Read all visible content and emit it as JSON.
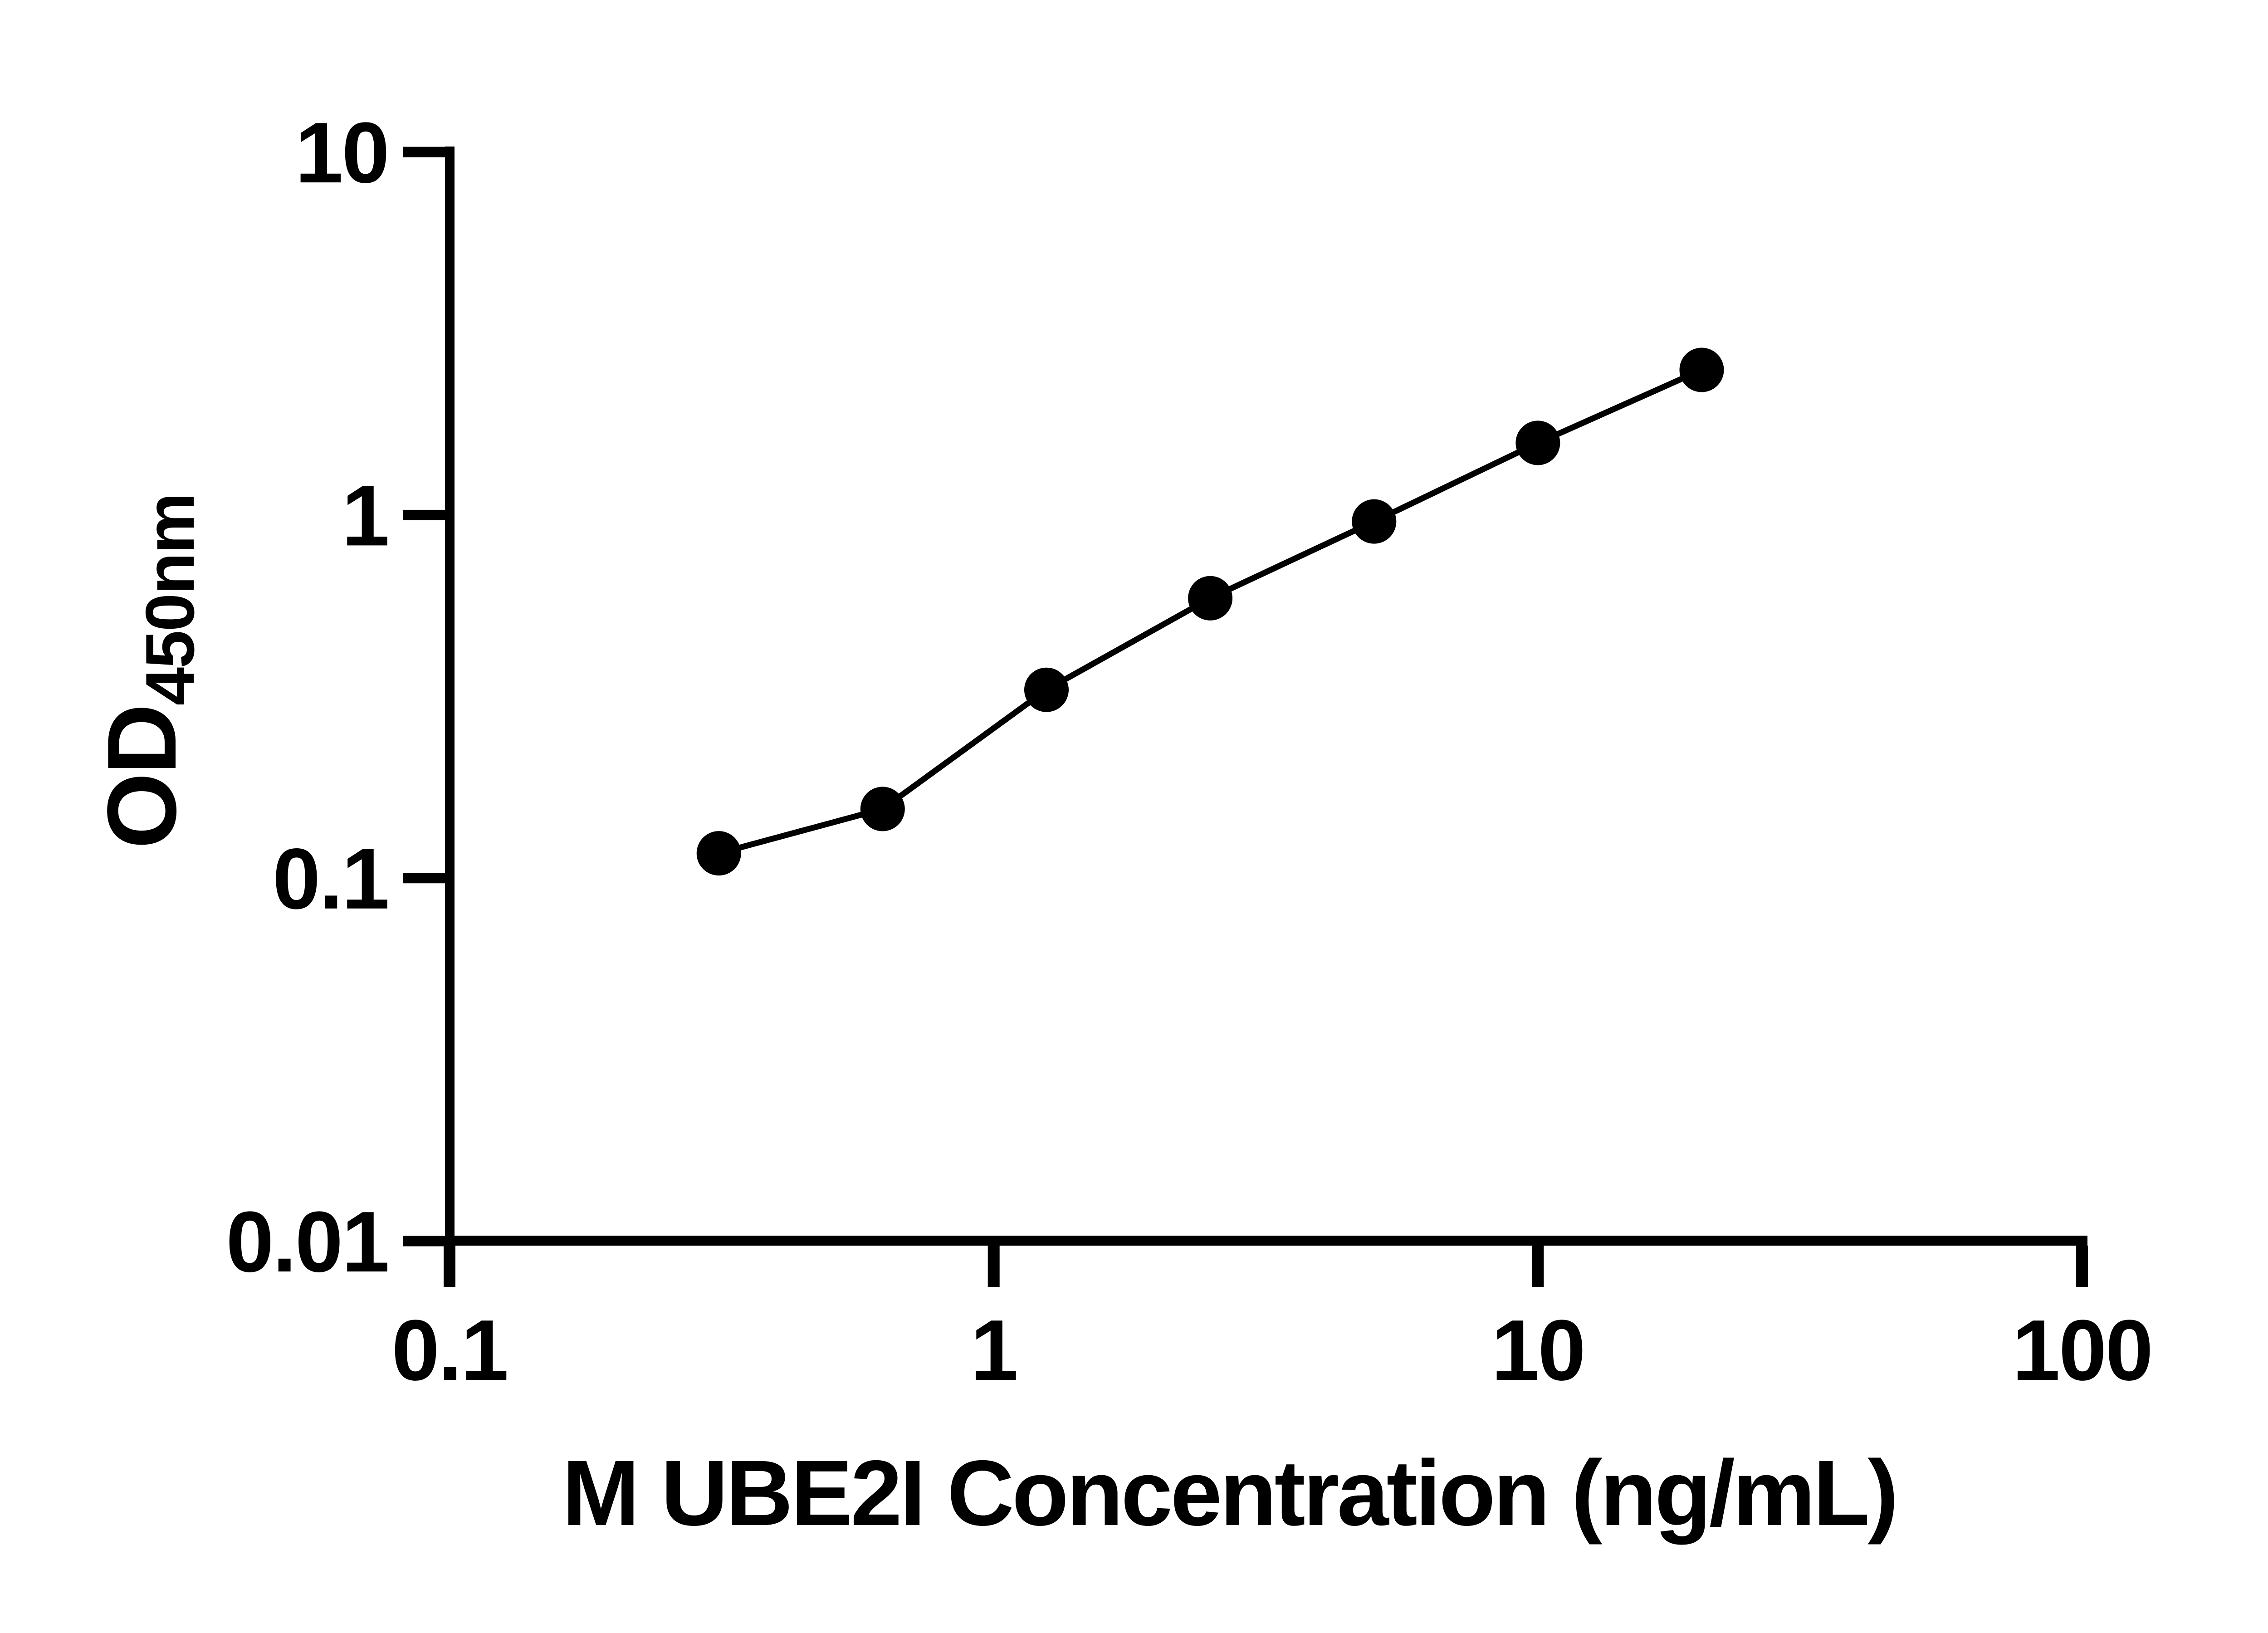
{
  "figure": {
    "background_color": "#ffffff",
    "ink_color": "#000000"
  },
  "chart_data": {
    "type": "scatter",
    "subtype": "log-log standard curve with connecting line",
    "title": "",
    "xlabel": "M UBE2I Concentration (ng/mL)",
    "ylabel": "OD",
    "ylabel_subscript": "450nm",
    "x_scale": "log",
    "y_scale": "log",
    "xlim": [
      0.1,
      100
    ],
    "ylim": [
      0.01,
      10
    ],
    "grid": false,
    "legend": false,
    "x_ticks": [
      {
        "value": 0.1,
        "label": "0.1"
      },
      {
        "value": 1,
        "label": "1"
      },
      {
        "value": 10,
        "label": "10"
      },
      {
        "value": 100,
        "label": "100"
      }
    ],
    "y_ticks": [
      {
        "value": 10,
        "label": "10"
      },
      {
        "value": 1,
        "label": "1"
      },
      {
        "value": 0.1,
        "label": "0.1"
      },
      {
        "value": 0.01,
        "label": "0.01"
      }
    ],
    "series": [
      {
        "name": "standard-curve",
        "marker": "filled-circle",
        "color": "#000000",
        "points": [
          {
            "x": 0.3125,
            "y": 0.117
          },
          {
            "x": 0.625,
            "y": 0.155
          },
          {
            "x": 1.25,
            "y": 0.33
          },
          {
            "x": 2.5,
            "y": 0.59
          },
          {
            "x": 5,
            "y": 0.96
          },
          {
            "x": 10,
            "y": 1.58
          },
          {
            "x": 20,
            "y": 2.51
          }
        ]
      }
    ]
  }
}
